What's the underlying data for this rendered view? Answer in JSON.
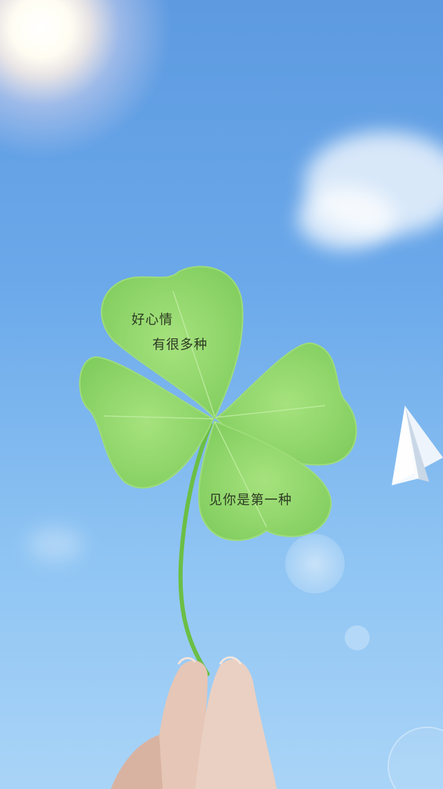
{
  "captions": {
    "line1": "好心情",
    "line2": "有很多种",
    "line3": "见你是第一种"
  },
  "colors": {
    "sky_top": "#5d9ae0",
    "sky_bottom": "#a9d4f7",
    "leaf": "#8fd86c",
    "leaf_light": "#b6ea92",
    "stem": "#6bbf45",
    "caption_text": "#2d3a22"
  },
  "icons": [
    "four-leaf-clover",
    "paper-airplane",
    "sun",
    "hand"
  ]
}
